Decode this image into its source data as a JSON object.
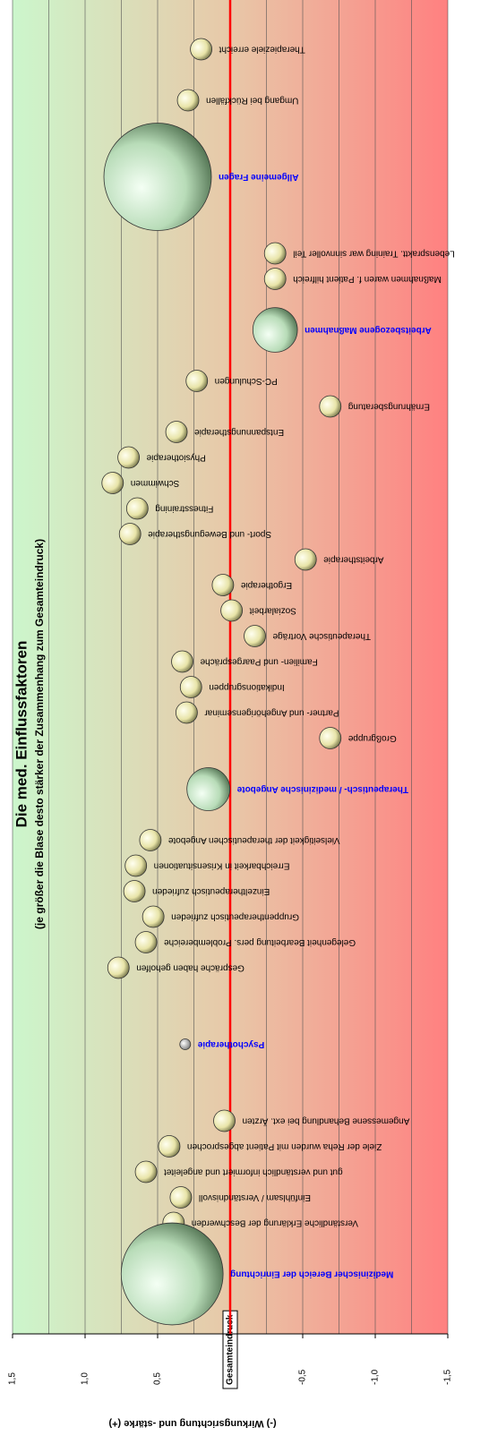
{
  "chart_data": {
    "type": "bubble",
    "title": "Die med. Einflussfaktoren",
    "subtitle": "(je größer die Blase desto stärker der Zusammenhang zum Gesamteindruck)",
    "value_axis_label": "(-)  Wirkungsrichtung und -stärke  (+)",
    "categories": [
      "Therapieziele erreicht",
      null,
      "Umgang bei Rückfällen",
      null,
      null,
      "Allgemeine Fragen",
      null,
      null,
      "Lebenspraktt. Training war sinnvoller Teil",
      "Maßnahmen waren f. Patient hilfreich",
      null,
      "Arbeitsbezogene Maßnahmen",
      null,
      "PC-Schulungen",
      "Ernährungsberatung",
      "Entspannungstherapie",
      "Physiotherapie",
      "Schwimmen",
      "Fitnesstraining",
      "Sport- und Bewegungstherapie",
      "Arbeitstherapie",
      "Ergotherapie",
      "Sozialarbeit",
      "Therapeutische Vorträge",
      "Familien- und Paargespräche",
      "Indikationsgruppen",
      "Partner- und Angehörigenseminar",
      "Großgruppe",
      null,
      "Therapeutisch- / medizinische Angebote",
      null,
      "Vielseitigkeit der therapeutischen Angebote",
      "Erreichbarkeit in Krisensituationen",
      "Einzeltherapeutisch zufrieden",
      "Gruppentherapeutisch zufrieden",
      "Gelegenheit Bearbeitung pers. Problembereiche",
      "Gespräche haben geholfen",
      null,
      null,
      "Psychotherapie",
      null,
      null,
      "Angemessene Behandlung bei ext. Ärzten",
      "Ziele der Reha wurden mit Patient abgesprochen",
      "gut und verständlich informiert und angeleitet",
      "Einfühlsam / Verständnisvoll",
      "Verständliche Erklärung der Beschwerden",
      null,
      "Medizinischer Bereich der Einrichtung"
    ],
    "values": [
      0.2,
      null,
      0.29,
      null,
      null,
      0.5,
      null,
      null,
      -0.31,
      -0.31,
      null,
      -0.31,
      null,
      0.23,
      -0.69,
      0.37,
      0.7,
      0.81,
      0.64,
      0.69,
      -0.52,
      0.05,
      -0.01,
      -0.17,
      0.33,
      0.27,
      0.3,
      -0.69,
      null,
      0.15,
      null,
      0.55,
      0.65,
      0.66,
      0.53,
      0.58,
      0.77,
      null,
      null,
      0.31,
      null,
      null,
      0.04,
      0.42,
      0.58,
      0.34,
      0.39,
      null,
      0.4
    ],
    "sizes": [
      1,
      null,
      1,
      null,
      null,
      25,
      null,
      null,
      1,
      1,
      null,
      4.3,
      null,
      1,
      1,
      1,
      1,
      1,
      1,
      1,
      1,
      1,
      1,
      1,
      1,
      1,
      1,
      1,
      null,
      4,
      null,
      1,
      1,
      1,
      1,
      1,
      1,
      null,
      null,
      0.25,
      null,
      null,
      1,
      1,
      1,
      1,
      1,
      null,
      22.5
    ],
    "emphasized": [
      5,
      11,
      29,
      39,
      48
    ],
    "emphasis_color": "#0000ff",
    "xlim": [
      1.5,
      -1.5
    ],
    "xticks": [
      {
        "value": 1.5,
        "label": "1,5"
      },
      {
        "value": 1.0,
        "label": "1,0"
      },
      {
        "value": 0.5,
        "label": "0,5"
      },
      {
        "value": 0,
        "label": "Gesamteindruck"
      },
      {
        "value": -0.5,
        "label": "-0,5"
      },
      {
        "value": -1.0,
        "label": "-1,0"
      },
      {
        "value": -1.5,
        "label": "-1,5"
      }
    ],
    "minor_gridlines": [
      1.25,
      0.75,
      0.25,
      -0.25,
      -0.75,
      -1.25
    ],
    "reference_line": 0,
    "reference_color": "#ff0000",
    "grid": true
  }
}
